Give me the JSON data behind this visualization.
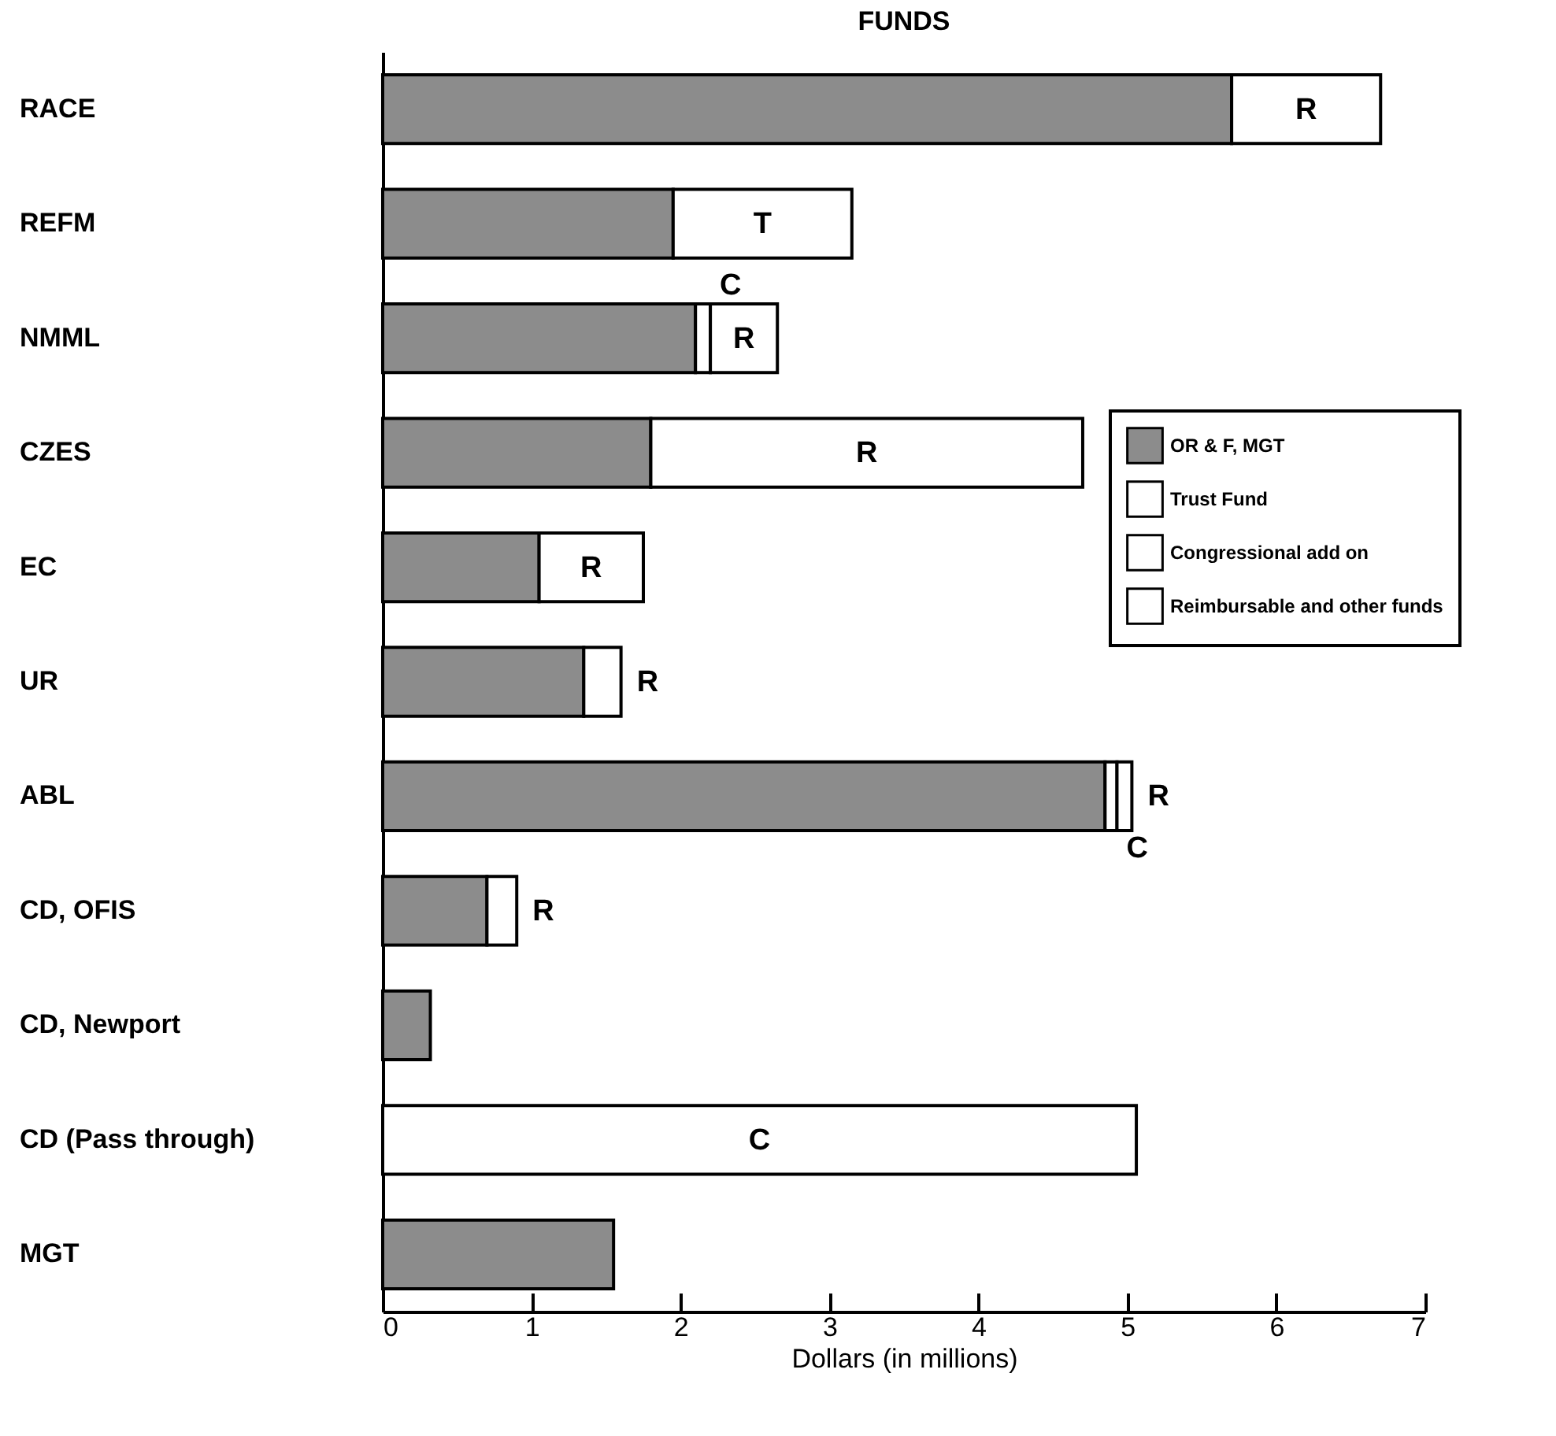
{
  "chart_data": {
    "type": "bar",
    "orientation": "horizontal",
    "stacked": true,
    "title": "FUNDS",
    "xlabel": "Dollars (in millions)",
    "categories": [
      "RACE",
      "REFM",
      "NMML",
      "CZES",
      "EC",
      "UR",
      "ABL",
      "CD, OFIS",
      "CD, Newport",
      "CD (Pass through)",
      "MGT"
    ],
    "series": [
      {
        "name": "OR & F, MGT",
        "color": "#8c8c8c",
        "values": [
          5.7,
          1.95,
          2.1,
          1.8,
          1.05,
          1.35,
          4.85,
          0.7,
          0.32,
          null,
          1.55
        ]
      },
      {
        "name": "Trust Fund",
        "color": "#ffffff",
        "values": [
          null,
          1.2,
          null,
          null,
          null,
          null,
          null,
          null,
          null,
          null,
          null
        ],
        "value_labels": [
          null,
          "T",
          null,
          null,
          null,
          null,
          null,
          null,
          null,
          null,
          null
        ]
      },
      {
        "name": "Congressional add on",
        "color": "#ffffff",
        "values": [
          null,
          null,
          0.1,
          null,
          null,
          null,
          0.08,
          null,
          null,
          5.06,
          null
        ],
        "value_labels": [
          null,
          null,
          "C",
          null,
          null,
          null,
          "C",
          null,
          null,
          "C",
          null
        ]
      },
      {
        "name": "Reimbursable and other funds",
        "color": "#ffffff",
        "values": [
          1.0,
          null,
          0.45,
          2.9,
          0.7,
          0.25,
          0.1,
          0.2,
          null,
          null,
          null
        ],
        "value_labels": [
          "R",
          null,
          "R",
          "R",
          "R",
          "R",
          "R",
          "R",
          null,
          null,
          null
        ]
      }
    ],
    "xlim": [
      0,
      7
    ],
    "xticks": [
      0,
      1,
      2,
      3,
      4,
      5,
      6,
      7
    ],
    "grid": false,
    "legend": "right"
  }
}
